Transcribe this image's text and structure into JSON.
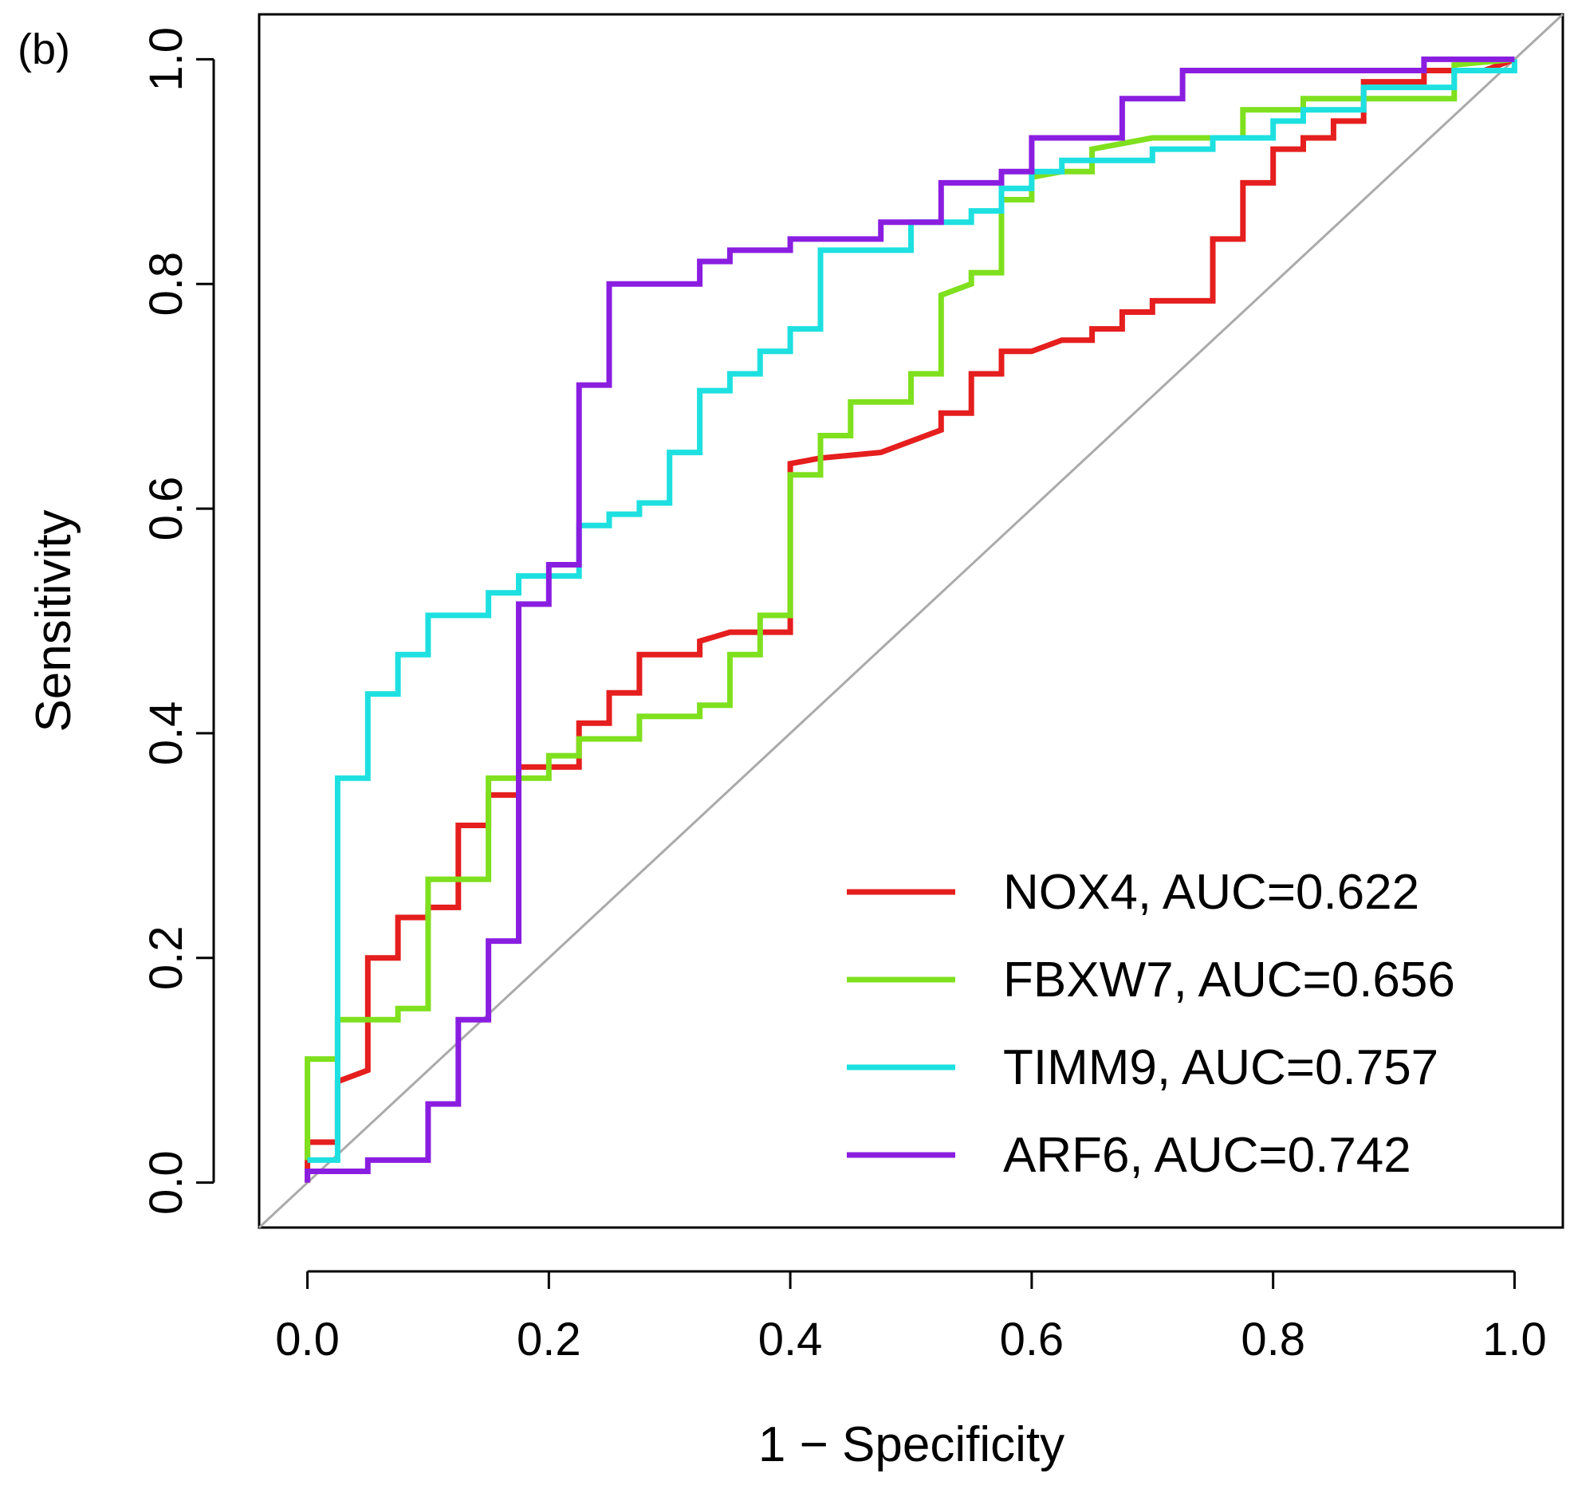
{
  "panel_label": "(b)",
  "chart_data": {
    "type": "line",
    "title": "",
    "xlabel": "1 − Specificity",
    "ylabel": "Sensitivity",
    "xlim": [
      -0.04,
      1.04
    ],
    "ylim": [
      -0.04,
      1.04
    ],
    "x_ticks": [
      0.0,
      0.2,
      0.4,
      0.6,
      0.8,
      1.0
    ],
    "y_ticks": [
      0.0,
      0.2,
      0.4,
      0.6,
      0.8,
      1.0
    ],
    "x_tick_labels": [
      "0.0",
      "0.2",
      "0.4",
      "0.6",
      "0.8",
      "1.0"
    ],
    "y_tick_labels": [
      "0.0",
      "0.2",
      "0.4",
      "0.6",
      "0.8",
      "1.0"
    ],
    "grid": false,
    "legend_position": "bottom-right",
    "reference_line": {
      "from": [
        0,
        0
      ],
      "to": [
        1,
        1
      ],
      "color": "#aaaaaa"
    },
    "series": [
      {
        "name": "NOX4",
        "label": "NOX4, AUC=0.622",
        "auc": 0.622,
        "color": "#e51e1e",
        "points": [
          [
            0,
            0
          ],
          [
            0,
            0.036
          ],
          [
            0.025,
            0.036
          ],
          [
            0.025,
            0.09
          ],
          [
            0.05,
            0.1
          ],
          [
            0.05,
            0.2
          ],
          [
            0.075,
            0.2
          ],
          [
            0.075,
            0.236
          ],
          [
            0.1,
            0.236
          ],
          [
            0.1,
            0.245
          ],
          [
            0.125,
            0.245
          ],
          [
            0.125,
            0.318
          ],
          [
            0.15,
            0.318
          ],
          [
            0.15,
            0.345
          ],
          [
            0.175,
            0.345
          ],
          [
            0.175,
            0.37
          ],
          [
            0.2,
            0.37
          ],
          [
            0.225,
            0.37
          ],
          [
            0.225,
            0.409
          ],
          [
            0.25,
            0.409
          ],
          [
            0.25,
            0.436
          ],
          [
            0.275,
            0.436
          ],
          [
            0.275,
            0.47
          ],
          [
            0.325,
            0.47
          ],
          [
            0.325,
            0.482
          ],
          [
            0.35,
            0.49
          ],
          [
            0.375,
            0.49
          ],
          [
            0.375,
            0.49
          ],
          [
            0.4,
            0.49
          ],
          [
            0.4,
            0.64
          ],
          [
            0.425,
            0.645
          ],
          [
            0.475,
            0.65
          ],
          [
            0.5,
            0.66
          ],
          [
            0.525,
            0.67
          ],
          [
            0.525,
            0.685
          ],
          [
            0.55,
            0.685
          ],
          [
            0.55,
            0.72
          ],
          [
            0.575,
            0.72
          ],
          [
            0.575,
            0.74
          ],
          [
            0.6,
            0.74
          ],
          [
            0.625,
            0.75
          ],
          [
            0.65,
            0.75
          ],
          [
            0.65,
            0.76
          ],
          [
            0.675,
            0.76
          ],
          [
            0.675,
            0.775
          ],
          [
            0.7,
            0.775
          ],
          [
            0.7,
            0.785
          ],
          [
            0.75,
            0.785
          ],
          [
            0.75,
            0.84
          ],
          [
            0.775,
            0.84
          ],
          [
            0.775,
            0.89
          ],
          [
            0.8,
            0.89
          ],
          [
            0.8,
            0.92
          ],
          [
            0.825,
            0.92
          ],
          [
            0.825,
            0.93
          ],
          [
            0.85,
            0.93
          ],
          [
            0.85,
            0.945
          ],
          [
            0.875,
            0.945
          ],
          [
            0.875,
            0.98
          ],
          [
            0.925,
            0.98
          ],
          [
            0.925,
            0.99
          ],
          [
            0.975,
            0.99
          ],
          [
            1,
            1
          ]
        ]
      },
      {
        "name": "FBXW7",
        "label": "FBXW7, AUC=0.656",
        "auc": 0.656,
        "color": "#7fe01e",
        "points": [
          [
            0,
            0.02
          ],
          [
            0,
            0.11
          ],
          [
            0.025,
            0.11
          ],
          [
            0.025,
            0.145
          ],
          [
            0.075,
            0.145
          ],
          [
            0.075,
            0.155
          ],
          [
            0.1,
            0.155
          ],
          [
            0.1,
            0.27
          ],
          [
            0.15,
            0.27
          ],
          [
            0.15,
            0.36
          ],
          [
            0.2,
            0.36
          ],
          [
            0.2,
            0.38
          ],
          [
            0.225,
            0.38
          ],
          [
            0.225,
            0.395
          ],
          [
            0.275,
            0.395
          ],
          [
            0.275,
            0.415
          ],
          [
            0.325,
            0.415
          ],
          [
            0.325,
            0.425
          ],
          [
            0.35,
            0.425
          ],
          [
            0.35,
            0.47
          ],
          [
            0.375,
            0.47
          ],
          [
            0.375,
            0.505
          ],
          [
            0.4,
            0.505
          ],
          [
            0.4,
            0.63
          ],
          [
            0.425,
            0.63
          ],
          [
            0.425,
            0.665
          ],
          [
            0.45,
            0.665
          ],
          [
            0.45,
            0.695
          ],
          [
            0.5,
            0.695
          ],
          [
            0.5,
            0.72
          ],
          [
            0.525,
            0.72
          ],
          [
            0.525,
            0.79
          ],
          [
            0.55,
            0.8
          ],
          [
            0.55,
            0.81
          ],
          [
            0.575,
            0.81
          ],
          [
            0.575,
            0.875
          ],
          [
            0.6,
            0.875
          ],
          [
            0.6,
            0.895
          ],
          [
            0.625,
            0.9
          ],
          [
            0.65,
            0.9
          ],
          [
            0.65,
            0.92
          ],
          [
            0.675,
            0.925
          ],
          [
            0.7,
            0.93
          ],
          [
            0.75,
            0.93
          ],
          [
            0.775,
            0.93
          ],
          [
            0.775,
            0.955
          ],
          [
            0.825,
            0.955
          ],
          [
            0.825,
            0.965
          ],
          [
            0.875,
            0.965
          ],
          [
            0.95,
            0.965
          ],
          [
            0.95,
            0.995
          ],
          [
            1,
            1
          ]
        ]
      },
      {
        "name": "TIMM9",
        "label": "TIMM9, AUC=0.757",
        "auc": 0.757,
        "color": "#1ee0e0",
        "points": [
          [
            0,
            0.02
          ],
          [
            0.025,
            0.02
          ],
          [
            0.025,
            0.36
          ],
          [
            0.05,
            0.36
          ],
          [
            0.05,
            0.435
          ],
          [
            0.075,
            0.435
          ],
          [
            0.075,
            0.47
          ],
          [
            0.1,
            0.47
          ],
          [
            0.1,
            0.505
          ],
          [
            0.15,
            0.505
          ],
          [
            0.15,
            0.525
          ],
          [
            0.175,
            0.525
          ],
          [
            0.175,
            0.54
          ],
          [
            0.2,
            0.54
          ],
          [
            0.225,
            0.54
          ],
          [
            0.225,
            0.585
          ],
          [
            0.25,
            0.585
          ],
          [
            0.25,
            0.595
          ],
          [
            0.275,
            0.595
          ],
          [
            0.275,
            0.605
          ],
          [
            0.3,
            0.605
          ],
          [
            0.3,
            0.65
          ],
          [
            0.325,
            0.65
          ],
          [
            0.325,
            0.705
          ],
          [
            0.35,
            0.705
          ],
          [
            0.35,
            0.72
          ],
          [
            0.375,
            0.72
          ],
          [
            0.375,
            0.74
          ],
          [
            0.4,
            0.74
          ],
          [
            0.4,
            0.76
          ],
          [
            0.425,
            0.76
          ],
          [
            0.425,
            0.83
          ],
          [
            0.5,
            0.83
          ],
          [
            0.5,
            0.855
          ],
          [
            0.55,
            0.855
          ],
          [
            0.55,
            0.865
          ],
          [
            0.575,
            0.865
          ],
          [
            0.575,
            0.885
          ],
          [
            0.6,
            0.885
          ],
          [
            0.6,
            0.9
          ],
          [
            0.625,
            0.9
          ],
          [
            0.625,
            0.91
          ],
          [
            0.7,
            0.91
          ],
          [
            0.7,
            0.92
          ],
          [
            0.75,
            0.92
          ],
          [
            0.75,
            0.93
          ],
          [
            0.8,
            0.93
          ],
          [
            0.8,
            0.945
          ],
          [
            0.825,
            0.945
          ],
          [
            0.825,
            0.955
          ],
          [
            0.875,
            0.955
          ],
          [
            0.875,
            0.975
          ],
          [
            0.95,
            0.975
          ],
          [
            0.95,
            0.99
          ],
          [
            1,
            0.99
          ],
          [
            1,
            1
          ]
        ]
      },
      {
        "name": "ARF6",
        "label": "ARF6, AUC=0.742",
        "auc": 0.742,
        "color": "#8a1ee0",
        "points": [
          [
            0,
            0
          ],
          [
            0,
            0.01
          ],
          [
            0.05,
            0.01
          ],
          [
            0.05,
            0.02
          ],
          [
            0.1,
            0.02
          ],
          [
            0.1,
            0.07
          ],
          [
            0.125,
            0.07
          ],
          [
            0.125,
            0.145
          ],
          [
            0.15,
            0.145
          ],
          [
            0.15,
            0.215
          ],
          [
            0.175,
            0.215
          ],
          [
            0.175,
            0.515
          ],
          [
            0.2,
            0.515
          ],
          [
            0.2,
            0.55
          ],
          [
            0.225,
            0.55
          ],
          [
            0.225,
            0.71
          ],
          [
            0.25,
            0.71
          ],
          [
            0.25,
            0.8
          ],
          [
            0.325,
            0.8
          ],
          [
            0.325,
            0.82
          ],
          [
            0.35,
            0.82
          ],
          [
            0.35,
            0.83
          ],
          [
            0.4,
            0.83
          ],
          [
            0.4,
            0.84
          ],
          [
            0.475,
            0.84
          ],
          [
            0.475,
            0.855
          ],
          [
            0.525,
            0.855
          ],
          [
            0.525,
            0.89
          ],
          [
            0.575,
            0.89
          ],
          [
            0.575,
            0.9
          ],
          [
            0.6,
            0.9
          ],
          [
            0.6,
            0.93
          ],
          [
            0.675,
            0.93
          ],
          [
            0.675,
            0.965
          ],
          [
            0.725,
            0.965
          ],
          [
            0.725,
            0.99
          ],
          [
            0.925,
            0.99
          ],
          [
            0.925,
            1
          ],
          [
            1,
            1
          ]
        ]
      }
    ]
  }
}
